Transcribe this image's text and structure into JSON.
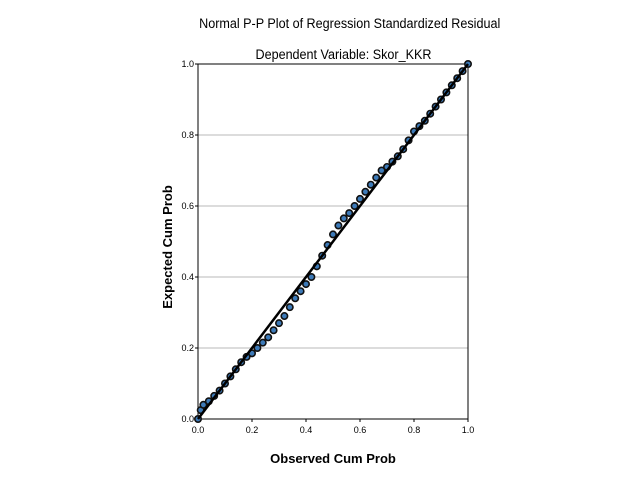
{
  "chart_data": {
    "type": "scatter",
    "title": "Normal P-P Plot of Regression Standardized Residual",
    "subtitle": "Dependent Variable: Skor_KKR",
    "xlabel": "Observed Cum Prob",
    "ylabel": "Expected Cum Prob",
    "xlim": [
      0,
      1
    ],
    "ylim": [
      0,
      1
    ],
    "x_ticks": [
      "0.0",
      "0.2",
      "0.4",
      "0.6",
      "0.8",
      "1.0"
    ],
    "y_ticks": [
      "0.0",
      "0.2",
      "0.4",
      "0.6",
      "0.8",
      "1.0"
    ],
    "grid": "horizontal",
    "reference_line": [
      [
        0,
        0
      ],
      [
        1,
        1
      ]
    ],
    "point_color": "#3d7ab8",
    "line_color": "#000000",
    "points": [
      [
        0.0,
        0.0
      ],
      [
        0.01,
        0.025
      ],
      [
        0.02,
        0.04
      ],
      [
        0.04,
        0.05
      ],
      [
        0.06,
        0.065
      ],
      [
        0.08,
        0.08
      ],
      [
        0.1,
        0.1
      ],
      [
        0.12,
        0.12
      ],
      [
        0.14,
        0.14
      ],
      [
        0.16,
        0.16
      ],
      [
        0.18,
        0.175
      ],
      [
        0.2,
        0.185
      ],
      [
        0.22,
        0.2
      ],
      [
        0.24,
        0.215
      ],
      [
        0.26,
        0.23
      ],
      [
        0.28,
        0.25
      ],
      [
        0.3,
        0.27
      ],
      [
        0.32,
        0.29
      ],
      [
        0.34,
        0.315
      ],
      [
        0.36,
        0.34
      ],
      [
        0.38,
        0.36
      ],
      [
        0.4,
        0.38
      ],
      [
        0.42,
        0.4
      ],
      [
        0.44,
        0.43
      ],
      [
        0.46,
        0.46
      ],
      [
        0.48,
        0.49
      ],
      [
        0.5,
        0.52
      ],
      [
        0.52,
        0.545
      ],
      [
        0.54,
        0.565
      ],
      [
        0.56,
        0.58
      ],
      [
        0.58,
        0.6
      ],
      [
        0.6,
        0.62
      ],
      [
        0.62,
        0.64
      ],
      [
        0.64,
        0.66
      ],
      [
        0.66,
        0.68
      ],
      [
        0.68,
        0.7
      ],
      [
        0.7,
        0.71
      ],
      [
        0.72,
        0.725
      ],
      [
        0.74,
        0.74
      ],
      [
        0.76,
        0.76
      ],
      [
        0.78,
        0.785
      ],
      [
        0.8,
        0.81
      ],
      [
        0.82,
        0.825
      ],
      [
        0.84,
        0.84
      ],
      [
        0.86,
        0.86
      ],
      [
        0.88,
        0.88
      ],
      [
        0.9,
        0.9
      ],
      [
        0.92,
        0.92
      ],
      [
        0.94,
        0.94
      ],
      [
        0.96,
        0.96
      ],
      [
        0.98,
        0.98
      ],
      [
        1.0,
        1.0
      ]
    ]
  }
}
